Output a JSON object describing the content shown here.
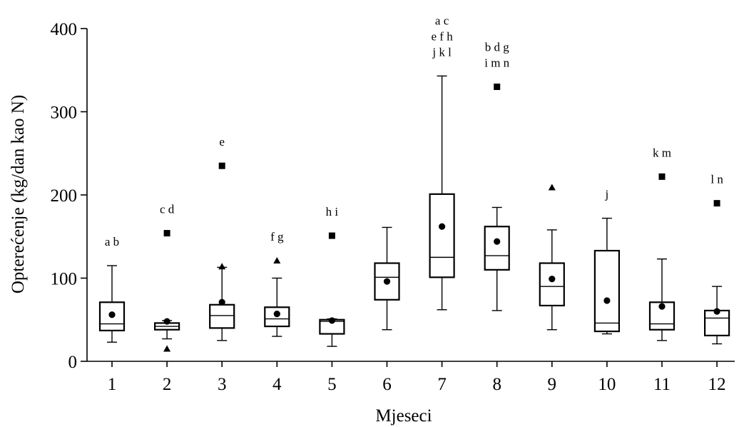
{
  "chart_data": {
    "type": "box",
    "xlabel": "Mjeseci",
    "ylabel": "Opterećenje (kg/dan kao N)",
    "ylim": [
      0,
      400
    ],
    "yticks": [
      0,
      100,
      200,
      300,
      400
    ],
    "categories": [
      "1",
      "2",
      "3",
      "4",
      "5",
      "6",
      "7",
      "8",
      "9",
      "10",
      "11",
      "12"
    ],
    "boxes": [
      {
        "month": "1",
        "whisker_low": 23,
        "q1": 37,
        "median": 45,
        "q3": 71,
        "whisker_high": 115,
        "mean": 56,
        "outliers": [],
        "extremes": [],
        "annotation": [
          "a b"
        ]
      },
      {
        "month": "2",
        "whisker_low": 27,
        "q1": 38,
        "median": 42,
        "q3": 46,
        "whisker_high": 49,
        "mean": 48,
        "outliers": [
          15
        ],
        "extremes": [
          154
        ],
        "annotation": [
          "c d"
        ]
      },
      {
        "month": "3",
        "whisker_low": 25,
        "q1": 40,
        "median": 55,
        "q3": 68,
        "whisker_high": 113,
        "mean": 71,
        "outliers": [
          114
        ],
        "extremes": [
          235
        ],
        "annotation": [
          "e"
        ]
      },
      {
        "month": "4",
        "whisker_low": 30,
        "q1": 42,
        "median": 51,
        "q3": 65,
        "whisker_high": 100,
        "mean": 57,
        "outliers": [
          121
        ],
        "extremes": [],
        "annotation": [
          "f g"
        ]
      },
      {
        "month": "5",
        "whisker_low": 18,
        "q1": 33,
        "median": 48,
        "q3": 50,
        "whisker_high": 51,
        "mean": 49,
        "outliers": [],
        "extremes": [
          151
        ],
        "annotation": [
          "h i"
        ]
      },
      {
        "month": "6",
        "whisker_low": 38,
        "q1": 74,
        "median": 101,
        "q3": 118,
        "whisker_high": 161,
        "mean": 96,
        "outliers": [],
        "extremes": [],
        "annotation": []
      },
      {
        "month": "7",
        "whisker_low": 62,
        "q1": 101,
        "median": 125,
        "q3": 201,
        "whisker_high": 343,
        "mean": 162,
        "outliers": [],
        "extremes": [],
        "annotation": [
          "a c",
          "e f h",
          "j k l"
        ]
      },
      {
        "month": "8",
        "whisker_low": 61,
        "q1": 110,
        "median": 127,
        "q3": 162,
        "whisker_high": 185,
        "mean": 144,
        "outliers": [],
        "extremes": [
          330
        ],
        "annotation": [
          "b d g",
          "i m n"
        ]
      },
      {
        "month": "9",
        "whisker_low": 38,
        "q1": 67,
        "median": 90,
        "q3": 118,
        "whisker_high": 158,
        "mean": 99,
        "outliers": [
          209
        ],
        "extremes": [],
        "annotation": []
      },
      {
        "month": "10",
        "whisker_low": 33,
        "q1": 36,
        "median": 46,
        "q3": 133,
        "whisker_high": 172,
        "mean": 73,
        "outliers": [],
        "extremes": [],
        "annotation": [
          "j"
        ]
      },
      {
        "month": "11",
        "whisker_low": 25,
        "q1": 38,
        "median": 45,
        "q3": 71,
        "whisker_high": 123,
        "mean": 66,
        "outliers": [],
        "extremes": [
          222
        ],
        "annotation": [
          "k m"
        ]
      },
      {
        "month": "12",
        "whisker_low": 21,
        "q1": 31,
        "median": 52,
        "q3": 61,
        "whisker_high": 90,
        "mean": 60,
        "outliers": [],
        "extremes": [
          190
        ],
        "annotation": [
          "l n"
        ]
      }
    ]
  }
}
